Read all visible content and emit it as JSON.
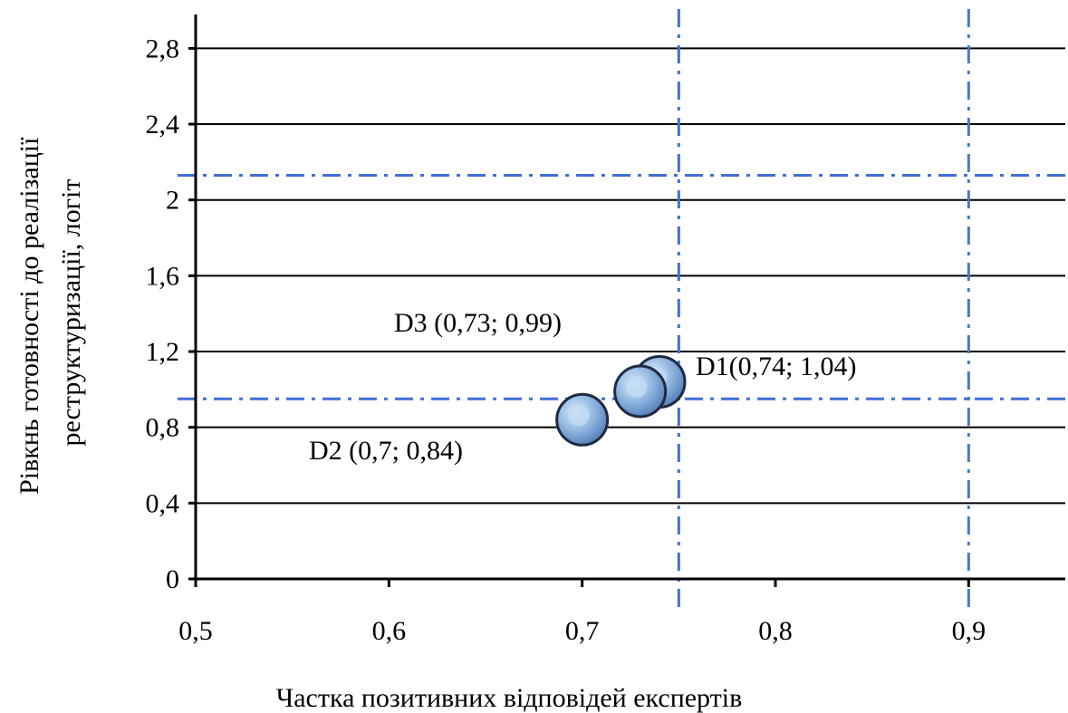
{
  "chart_data": {
    "type": "scatter",
    "xlabel": "Частка позитивних відповідей експертів",
    "ylabel_lines": [
      "Рівкнь готовності до реалізації",
      "реструктуризації, логіт"
    ],
    "xlim": [
      0.5,
      0.95
    ],
    "ylim": [
      0,
      2.95
    ],
    "x_ticks": [
      0.5,
      0.6,
      0.7,
      0.8,
      0.9
    ],
    "x_tick_labels": [
      "0,5",
      "0,6",
      "0,7",
      "0,8",
      "0,9"
    ],
    "y_ticks": [
      0,
      0.4,
      0.8,
      1.2,
      1.6,
      2,
      2.4,
      2.8
    ],
    "y_tick_labels": [
      "0",
      "0,4",
      "0,8",
      "1,2",
      "1,6",
      "2",
      "2,4",
      "2,8"
    ],
    "grid": "horizontal",
    "points": [
      {
        "id": "D1",
        "x": 0.74,
        "y": 1.04,
        "label": "D1(0,74; 1,04)"
      },
      {
        "id": "D3",
        "x": 0.73,
        "y": 0.99,
        "label": "D3 (0,73; 0,99)"
      },
      {
        "id": "D2",
        "x": 0.7,
        "y": 0.84,
        "label": "D2 (0,7; 0,84)"
      }
    ],
    "reference_lines": [
      {
        "orientation": "vertical",
        "value": 0.75
      },
      {
        "orientation": "vertical",
        "value": 0.9
      },
      {
        "orientation": "horizontal",
        "value": 2.13
      },
      {
        "orientation": "horizontal",
        "value": 0.95
      }
    ],
    "colors": {
      "marker_fill": "#7ea9d9",
      "marker_highlight": "#c4dcf4",
      "marker_stroke": "#1f2a44",
      "reference_line": "#3f6fd6",
      "reference_line_alt": "#4a7bb8",
      "grid": "#000000"
    }
  }
}
